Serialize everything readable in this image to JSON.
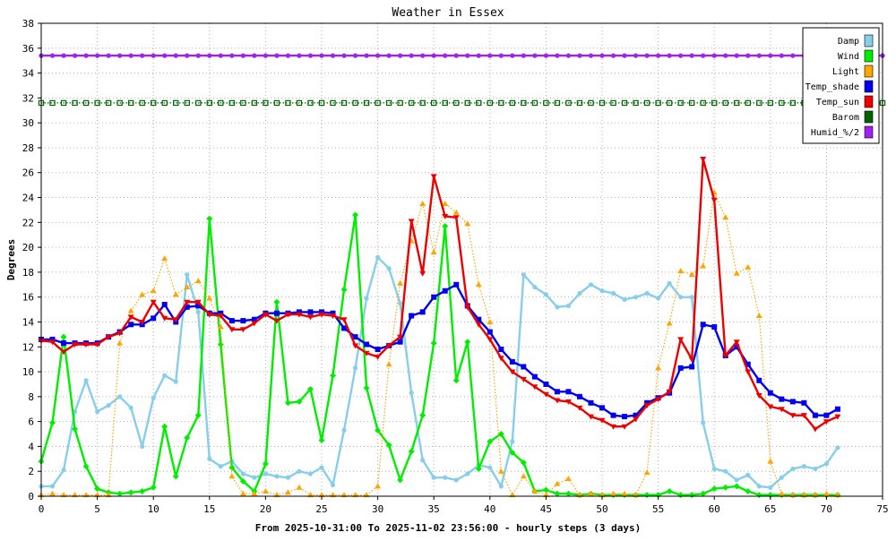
{
  "chart_data": {
    "type": "line",
    "title": "Weather in Essex",
    "xlabel": "From 2025-10-31:00 To 2025-11-02 23:56:00 - hourly steps (3 days)",
    "ylabel": "Degrees",
    "xlim": [
      0,
      75
    ],
    "ylim": [
      0,
      38
    ],
    "x_ticks": [
      "0",
      "5",
      "10",
      "15",
      "20",
      "25",
      "30",
      "35",
      "40",
      "45",
      "50",
      "55",
      "60",
      "65",
      "70",
      "75"
    ],
    "y_ticks": [
      "0",
      "2",
      "4",
      "6",
      "8",
      "10",
      "12",
      "14",
      "16",
      "18",
      "20",
      "22",
      "24",
      "26",
      "28",
      "30",
      "32",
      "34",
      "36",
      "38"
    ],
    "grid": true,
    "legend_position": "top-right",
    "series": [
      {
        "name": "Damp",
        "color": "#87ceeb",
        "style": "solid",
        "marker": "circle",
        "values": [
          0.8,
          0.8,
          2.1,
          6.8,
          9.3,
          6.8,
          7.3,
          8.0,
          7.1,
          4.0,
          7.9,
          9.7,
          9.2,
          17.8,
          14.8,
          3.0,
          2.4,
          2.8,
          1.8,
          1.5,
          1.8,
          1.6,
          1.5,
          2.0,
          1.8,
          2.3,
          0.9,
          5.3,
          10.3,
          15.9,
          19.2,
          18.3,
          15.5,
          8.3,
          2.9,
          1.5,
          1.5,
          1.3,
          1.8,
          2.5,
          2.3,
          0.8,
          4.4,
          17.8,
          16.8,
          16.2,
          15.2,
          15.3,
          16.3,
          17.0,
          16.5,
          16.3,
          15.8,
          16.0,
          16.3,
          15.9,
          17.1,
          16.0,
          16.0,
          5.9,
          2.2,
          2.0,
          1.3,
          1.7,
          0.8,
          0.7,
          1.5,
          2.2,
          2.4,
          2.2,
          2.6,
          3.9
        ]
      },
      {
        "name": "Wind",
        "color": "#00ee00",
        "style": "solid",
        "marker": "diamond",
        "values": [
          2.8,
          5.9,
          12.8,
          5.4,
          2.4,
          0.6,
          0.3,
          0.2,
          0.3,
          0.4,
          0.7,
          5.6,
          1.6,
          4.7,
          6.5,
          22.3,
          12.2,
          2.3,
          1.2,
          0.4,
          2.6,
          15.6,
          7.5,
          7.6,
          8.6,
          4.5,
          9.7,
          16.6,
          22.6,
          8.7,
          5.3,
          4.1,
          1.3,
          3.6,
          6.5,
          12.3,
          21.7,
          9.3,
          12.4,
          2.2,
          4.4,
          5.0,
          3.5,
          2.7,
          0.4,
          0.5,
          0.2,
          0.2,
          0.1,
          0.2,
          0.1,
          0.1,
          0.1,
          0.1,
          0.1,
          0.1,
          0.4,
          0.1,
          0.1,
          0.2,
          0.6,
          0.7,
          0.8,
          0.4,
          0.1,
          0.1,
          0.1,
          0.1,
          0.1,
          0.1,
          0.1,
          0.1
        ]
      },
      {
        "name": "Light",
        "color": "#ffa500",
        "style": "dotted",
        "marker": "triangle",
        "values": [
          0.1,
          0.2,
          0.1,
          0.1,
          0.1,
          0.1,
          0.1,
          12.3,
          14.9,
          16.2,
          16.5,
          19.1,
          16.2,
          16.8,
          17.3,
          15.9,
          13.6,
          1.6,
          0.2,
          0.2,
          0.4,
          0.1,
          0.3,
          0.7,
          0.1,
          0.1,
          0.1,
          0.1,
          0.1,
          0.1,
          0.8,
          10.6,
          17.1,
          20.5,
          23.5,
          19.6,
          23.5,
          22.8,
          21.9,
          17.0,
          14.0,
          2.0,
          0.1,
          1.6,
          0.4,
          0.1,
          1.0,
          1.4,
          0.1,
          0.2,
          0.1,
          0.2,
          0.2,
          0.1,
          1.9,
          10.3,
          13.9,
          18.1,
          17.8,
          18.5,
          24.4,
          22.4,
          17.9,
          18.4,
          14.5,
          2.8,
          0.2,
          0.1,
          0.1,
          0.1,
          0.2,
          0.1
        ]
      },
      {
        "name": "Temp_shade",
        "color": "#0000ee",
        "style": "solid",
        "marker": "square",
        "values": [
          12.6,
          12.6,
          12.3,
          12.3,
          12.3,
          12.3,
          12.8,
          13.2,
          13.8,
          13.8,
          14.3,
          15.4,
          14.0,
          15.2,
          15.3,
          14.7,
          14.7,
          14.1,
          14.1,
          14.2,
          14.7,
          14.7,
          14.7,
          14.8,
          14.8,
          14.8,
          14.7,
          13.5,
          12.8,
          12.2,
          11.8,
          12.1,
          12.4,
          14.5,
          14.8,
          16.0,
          16.5,
          17.0,
          15.3,
          14.2,
          13.2,
          11.8,
          10.8,
          10.4,
          9.6,
          9.0,
          8.4,
          8.4,
          8.0,
          7.5,
          7.1,
          6.5,
          6.4,
          6.5,
          7.5,
          7.9,
          8.3,
          10.3,
          10.4,
          13.8,
          13.6,
          11.3,
          12.0,
          10.6,
          9.3,
          8.3,
          7.8,
          7.6,
          7.5,
          6.5,
          6.5,
          7.0
        ]
      },
      {
        "name": "Temp_sun",
        "color": "#ee0000",
        "style": "solid",
        "marker": "triangle-down",
        "values": [
          12.5,
          12.4,
          11.6,
          12.2,
          12.2,
          12.2,
          12.8,
          13.1,
          14.4,
          14.0,
          15.6,
          14.3,
          14.2,
          15.6,
          15.6,
          14.6,
          14.5,
          13.4,
          13.4,
          13.9,
          14.6,
          14.1,
          14.6,
          14.6,
          14.4,
          14.6,
          14.5,
          14.2,
          12.1,
          11.5,
          11.2,
          12.1,
          12.8,
          22.1,
          17.9,
          25.7,
          22.5,
          22.4,
          15.2,
          13.8,
          12.6,
          11.1,
          10.0,
          9.4,
          8.8,
          8.2,
          7.7,
          7.6,
          7.1,
          6.4,
          6.1,
          5.6,
          5.6,
          6.2,
          7.3,
          7.8,
          8.4,
          12.6,
          11.0,
          27.1,
          23.8,
          11.3,
          12.4,
          10.0,
          8.1,
          7.2,
          7.0,
          6.5,
          6.5,
          5.4,
          6.0,
          6.4
        ]
      },
      {
        "name": "Barom",
        "color": "#006400",
        "style": "dotted",
        "marker": "square-open",
        "constant": 31.6
      },
      {
        "name": "Humid_%/2",
        "color": "#a020f0",
        "style": "solid",
        "marker": "circle",
        "constant": 35.4
      }
    ]
  }
}
